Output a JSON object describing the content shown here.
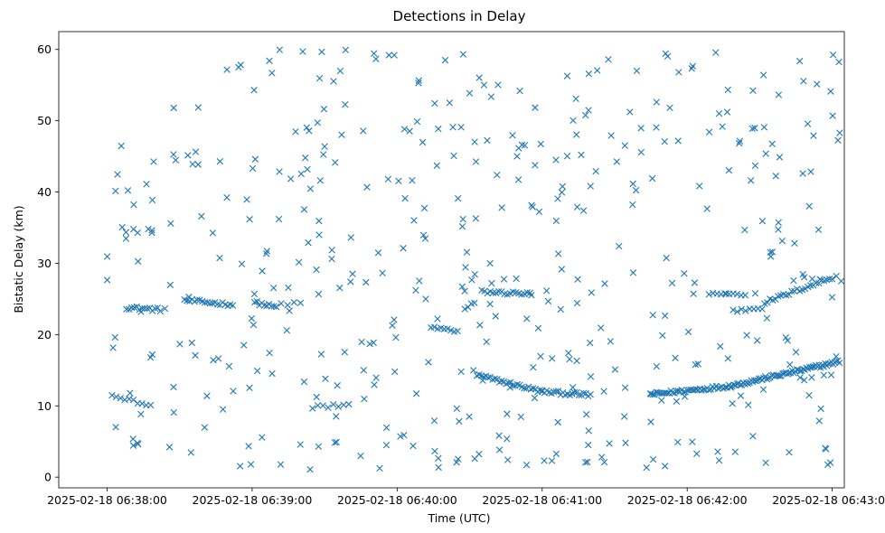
{
  "chart_data": {
    "type": "scatter",
    "title": "Detections in Delay",
    "xlabel": "Time (UTC)",
    "ylabel": "Bistatic Delay (km)",
    "marker": "x",
    "color": "#1f77b4",
    "grid": false,
    "x_unit": "seconds after 2025-02-18 06:38:00 UTC",
    "xlim": [
      -20,
      305
    ],
    "ylim": [
      -1.5,
      62.5
    ],
    "x_ticks": [
      {
        "value": 0,
        "label": "2025-02-18 06:38:00"
      },
      {
        "value": 60,
        "label": "2025-02-18 06:39:00"
      },
      {
        "value": 120,
        "label": "2025-02-18 06:40:00"
      },
      {
        "value": 180,
        "label": "2025-02-18 06:41:00"
      },
      {
        "value": 240,
        "label": "2025-02-18 06:42:00"
      },
      {
        "value": 300,
        "label": "2025-02-18 06:43:00"
      }
    ],
    "y_ticks": [
      {
        "value": 0,
        "label": "0"
      },
      {
        "value": 10,
        "label": "10"
      },
      {
        "value": 20,
        "label": "20"
      },
      {
        "value": 30,
        "label": "30"
      },
      {
        "value": 40,
        "label": "40"
      },
      {
        "value": 50,
        "label": "50"
      },
      {
        "value": 60,
        "label": "60"
      }
    ],
    "tracks": [
      {
        "name": "track-1",
        "x_start": 8,
        "x_end": 22,
        "y_start": 23.8,
        "y_end": 23.5,
        "count": 14
      },
      {
        "name": "track-2",
        "x_start": 32,
        "x_end": 52,
        "y_start": 24.8,
        "y_end": 24.2,
        "count": 20
      },
      {
        "name": "track-3",
        "x_start": 61,
        "x_end": 70,
        "y_start": 24.5,
        "y_end": 23.8,
        "count": 10
      },
      {
        "name": "track-4",
        "x_start": 72,
        "x_end": 80,
        "y_start": 24.3,
        "y_end": 24.3,
        "count": 4
      },
      {
        "name": "track-5",
        "x_start": 134,
        "x_end": 145,
        "y_start": 21.0,
        "y_end": 20.5,
        "count": 9
      },
      {
        "name": "track-6",
        "x_start": 148,
        "x_end": 152,
        "y_start": 23.5,
        "y_end": 24.5,
        "count": 4
      },
      {
        "name": "track-7",
        "x_start": 155,
        "x_end": 175,
        "y_start": 26.0,
        "y_end": 25.7,
        "count": 18
      },
      {
        "name": "track-8",
        "x_start": 153,
        "x_end": 180,
        "y_start": 14.3,
        "y_end": 12.0,
        "count": 30
      },
      {
        "name": "track-9",
        "x_start": 180,
        "x_end": 200,
        "y_start": 12.0,
        "y_end": 11.5,
        "count": 22
      },
      {
        "name": "track-10",
        "x_start": 225,
        "x_end": 258,
        "y_start": 11.6,
        "y_end": 12.8,
        "count": 45
      },
      {
        "name": "track-11",
        "x_start": 258,
        "x_end": 303,
        "y_start": 12.8,
        "y_end": 16.2,
        "count": 70
      },
      {
        "name": "track-12",
        "x_start": 249,
        "x_end": 264,
        "y_start": 25.8,
        "y_end": 25.6,
        "count": 10
      },
      {
        "name": "track-13",
        "x_start": 259,
        "x_end": 271,
        "y_start": 23.3,
        "y_end": 23.8,
        "count": 8
      },
      {
        "name": "track-14",
        "x_start": 272,
        "x_end": 300,
        "y_start": 24.5,
        "y_end": 28.0,
        "count": 26
      },
      {
        "name": "track-15",
        "x_start": 2,
        "x_end": 18,
        "y_start": 11.5,
        "y_end": 10.0,
        "count": 10
      },
      {
        "name": "track-16",
        "x_start": 85,
        "x_end": 100,
        "y_start": 9.8,
        "y_end": 10.2,
        "count": 8
      }
    ],
    "scatter": {
      "count": 460,
      "seed": 12345,
      "x_range": [
        0,
        305
      ],
      "y_range": [
        1,
        60
      ]
    }
  }
}
